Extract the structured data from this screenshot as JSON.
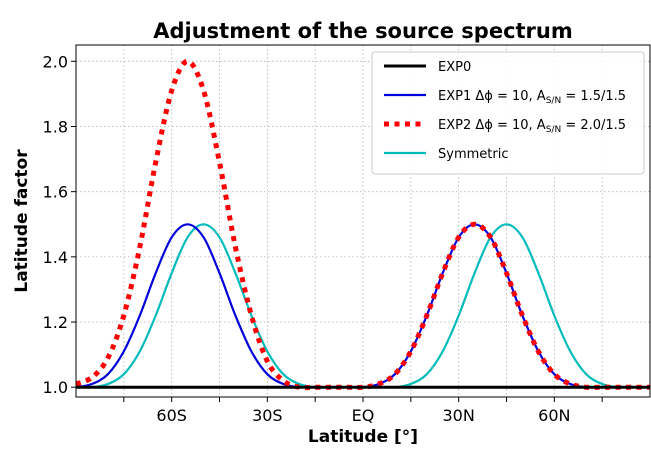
{
  "chart_data": {
    "type": "line",
    "title": "Adjustment of the source spectrum",
    "xlabel": "Latitude [°]",
    "ylabel": "Latitude factor",
    "xlim": [
      -90,
      90
    ],
    "ylim": [
      0.97,
      2.05
    ],
    "x_ticks": [
      {
        "value": -75,
        "label": ""
      },
      {
        "value": -60,
        "label": "60S"
      },
      {
        "value": -45,
        "label": ""
      },
      {
        "value": -30,
        "label": "30S"
      },
      {
        "value": -15,
        "label": ""
      },
      {
        "value": 0,
        "label": "EQ"
      },
      {
        "value": 15,
        "label": ""
      },
      {
        "value": 30,
        "label": "30N"
      },
      {
        "value": 45,
        "label": ""
      },
      {
        "value": 60,
        "label": "60N"
      },
      {
        "value": 75,
        "label": ""
      }
    ],
    "y_ticks": [
      {
        "value": 1.0,
        "label": "1.0"
      },
      {
        "value": 1.2,
        "label": "1.2"
      },
      {
        "value": 1.4,
        "label": "1.4"
      },
      {
        "value": 1.6,
        "label": "1.6"
      },
      {
        "value": 1.8,
        "label": "1.8"
      },
      {
        "value": 2.0,
        "label": "2.0"
      }
    ],
    "grid": true,
    "legend_position": "top-right",
    "series": [
      {
        "name": "EXP0",
        "color": "#000000",
        "style": "solid",
        "x": [
          -90,
          90
        ],
        "y": [
          1.0,
          1.0
        ]
      },
      {
        "name": "EXP1 Δϕ = 10, A_S/N = 1.5/1.5",
        "legend_main": "EXP1 Δϕ = 10, A",
        "legend_sub": "S/N",
        "legend_tail": " = 1.5/1.5",
        "color": "#0000dd",
        "style": "solid",
        "x": [
          -90,
          -85,
          -80,
          -75,
          -70,
          -65,
          -60,
          -55,
          -50,
          -45,
          -40,
          -35,
          -30,
          -25,
          -20,
          -15,
          -10,
          -5,
          0,
          5,
          10,
          15,
          20,
          25,
          30,
          35,
          40,
          45,
          50,
          55,
          60,
          65,
          70,
          75,
          80,
          85,
          90
        ],
        "y": [
          1.0,
          1.01,
          1.04,
          1.11,
          1.22,
          1.35,
          1.46,
          1.5,
          1.46,
          1.35,
          1.22,
          1.11,
          1.04,
          1.01,
          1.0,
          1.0,
          1.0,
          1.0,
          1.0,
          1.01,
          1.04,
          1.11,
          1.22,
          1.35,
          1.46,
          1.5,
          1.46,
          1.35,
          1.22,
          1.11,
          1.04,
          1.01,
          1.0,
          1.0,
          1.0,
          1.0,
          1.0
        ]
      },
      {
        "name": "EXP2 Δϕ = 10, A_S/N = 2.0/1.5",
        "legend_main": "EXP2 Δϕ = 10, A",
        "legend_sub": "S/N",
        "legend_tail": " = 2.0/1.5",
        "color": "#ff0000",
        "style": "dotted",
        "x": [
          -90,
          -85,
          -80,
          -75,
          -70,
          -65,
          -60,
          -55,
          -50,
          -45,
          -40,
          -35,
          -30,
          -25,
          -20,
          -15,
          -10,
          -5,
          0,
          5,
          10,
          15,
          20,
          25,
          30,
          35,
          40,
          45,
          50,
          55,
          60,
          65,
          70,
          75,
          80,
          85,
          90
        ],
        "y": [
          1.01,
          1.03,
          1.09,
          1.22,
          1.43,
          1.69,
          1.91,
          2.0,
          1.91,
          1.69,
          1.43,
          1.22,
          1.08,
          1.02,
          1.0,
          1.0,
          1.0,
          1.0,
          1.0,
          1.01,
          1.04,
          1.11,
          1.22,
          1.35,
          1.46,
          1.5,
          1.46,
          1.35,
          1.22,
          1.11,
          1.04,
          1.01,
          1.0,
          1.0,
          1.0,
          1.0,
          1.0
        ]
      },
      {
        "name": "Symmetric",
        "color": "#00bbbb",
        "style": "solid",
        "x": [
          -90,
          -85,
          -80,
          -75,
          -70,
          -65,
          -60,
          -55,
          -50,
          -45,
          -40,
          -35,
          -30,
          -25,
          -20,
          -15,
          -10,
          -5,
          0,
          5,
          10,
          15,
          20,
          25,
          30,
          35,
          40,
          45,
          50,
          55,
          60,
          65,
          70,
          75,
          80,
          85,
          90
        ],
        "y": [
          1.0,
          1.0,
          1.01,
          1.04,
          1.11,
          1.22,
          1.35,
          1.46,
          1.5,
          1.46,
          1.35,
          1.22,
          1.11,
          1.04,
          1.01,
          1.0,
          1.0,
          1.0,
          1.0,
          1.0,
          1.0,
          1.01,
          1.04,
          1.11,
          1.22,
          1.35,
          1.46,
          1.5,
          1.46,
          1.35,
          1.22,
          1.11,
          1.04,
          1.01,
          1.0,
          1.0,
          1.0
        ]
      }
    ]
  }
}
